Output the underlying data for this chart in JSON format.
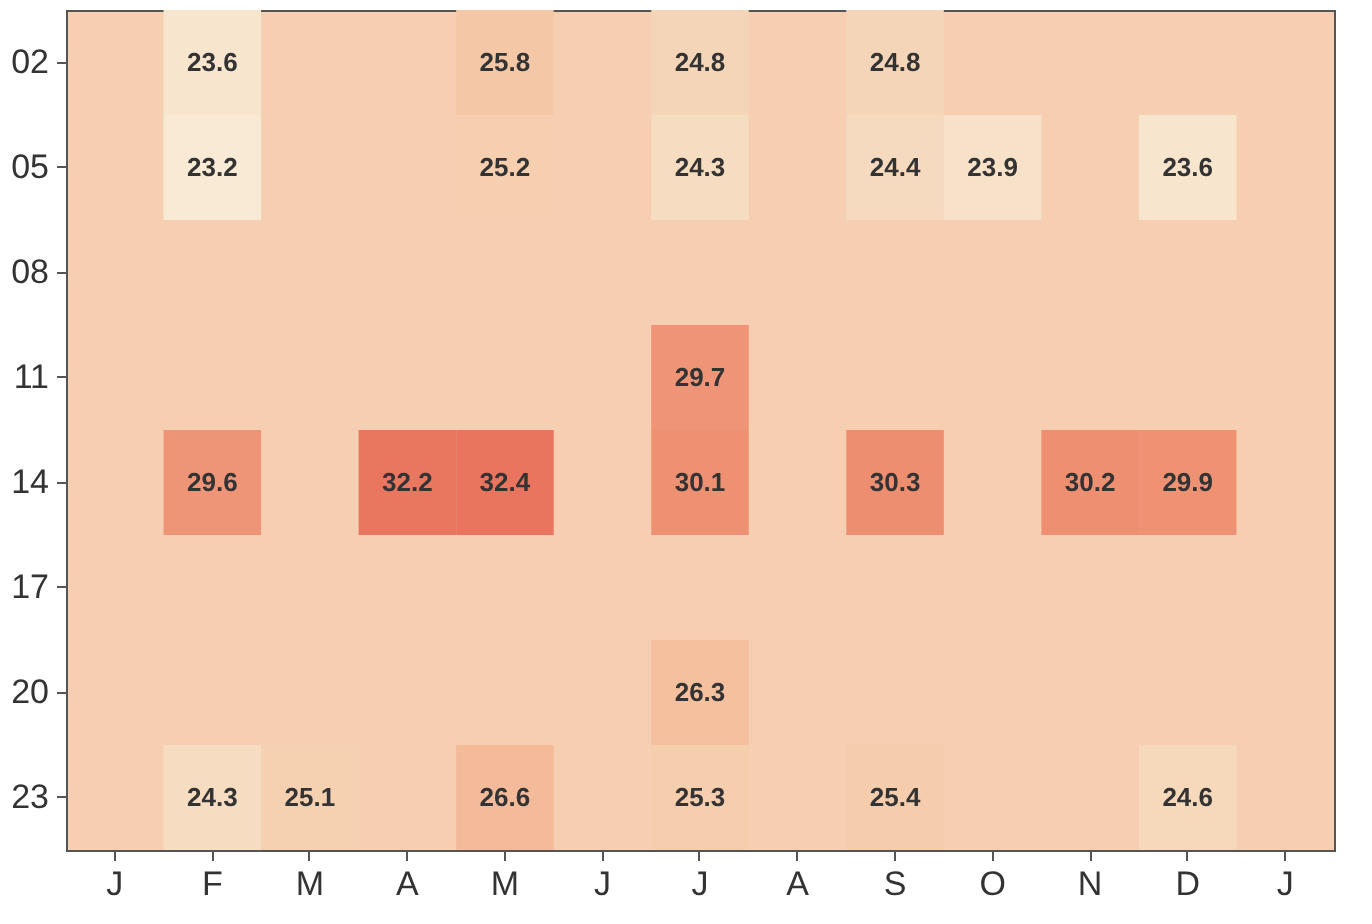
{
  "chart_data": {
    "type": "heatmap",
    "categories": [
      "J",
      "F",
      "M",
      "A",
      "M",
      "J",
      "J",
      "A",
      "S",
      "O",
      "N",
      "D",
      "J"
    ],
    "y_categories": [
      "02",
      "05",
      "08",
      "11",
      "14",
      "17",
      "20",
      "23"
    ],
    "cells": [
      [
        null,
        23.6,
        null,
        null,
        25.8,
        null,
        24.8,
        null,
        24.8,
        null,
        null,
        null,
        null
      ],
      [
        null,
        23.2,
        null,
        null,
        25.2,
        null,
        24.3,
        null,
        24.4,
        23.9,
        null,
        23.6,
        null
      ],
      [
        null,
        null,
        null,
        null,
        null,
        null,
        null,
        null,
        null,
        null,
        null,
        null,
        null
      ],
      [
        null,
        null,
        null,
        null,
        null,
        null,
        29.7,
        null,
        null,
        null,
        null,
        null,
        null
      ],
      [
        null,
        29.6,
        null,
        32.2,
        32.4,
        null,
        30.1,
        null,
        30.3,
        null,
        30.2,
        29.9,
        null
      ],
      [
        null,
        null,
        null,
        null,
        null,
        null,
        null,
        null,
        null,
        null,
        null,
        null,
        null
      ],
      [
        null,
        null,
        null,
        null,
        null,
        null,
        26.3,
        null,
        null,
        null,
        null,
        null,
        null
      ],
      [
        null,
        24.3,
        25.1,
        null,
        26.6,
        null,
        25.3,
        null,
        25.4,
        null,
        null,
        24.6,
        null
      ]
    ],
    "cell_labels": [
      [
        null,
        "23.6",
        null,
        null,
        "25.8",
        null,
        "24.8",
        null,
        "24.8",
        null,
        null,
        null,
        null
      ],
      [
        null,
        "23.2",
        null,
        null,
        "25.2",
        null,
        "24.3",
        null,
        "24.4",
        "23.9",
        null,
        "23.6",
        null
      ],
      [
        null,
        null,
        null,
        null,
        null,
        null,
        null,
        null,
        null,
        null,
        null,
        null,
        null
      ],
      [
        null,
        null,
        null,
        null,
        null,
        null,
        "29.7",
        null,
        null,
        null,
        null,
        null,
        null
      ],
      [
        null,
        "29.6",
        null,
        "32.2",
        "32.4",
        null,
        "30.1",
        null,
        "30.3",
        null,
        "30.2",
        "29.9",
        null
      ],
      [
        null,
        null,
        null,
        null,
        null,
        null,
        null,
        null,
        null,
        null,
        null,
        null,
        null
      ],
      [
        null,
        null,
        null,
        null,
        null,
        null,
        "26.3",
        null,
        null,
        null,
        null,
        null,
        null
      ],
      [
        null,
        "24.3",
        "25.1",
        null,
        "26.6",
        null,
        "25.3",
        null,
        "25.4",
        null,
        null,
        "24.6",
        null
      ]
    ]
  }
}
